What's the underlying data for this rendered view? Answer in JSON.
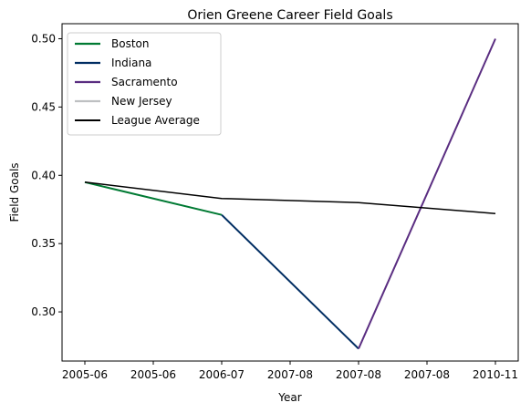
{
  "chart_data": {
    "type": "line",
    "title": "Orien Greene Career Field Goals",
    "xlabel": "Year",
    "ylabel": "Field Goals",
    "x_tick_labels": [
      "2005-06",
      "2005-06",
      "2006-07",
      "2007-08",
      "2007-08",
      "2007-08",
      "2010-11"
    ],
    "y_ticks": [
      0.3,
      0.35,
      0.4,
      0.45,
      0.5
    ],
    "y_tick_labels": [
      "0.30",
      "0.35",
      "0.40",
      "0.45",
      "0.50"
    ],
    "ylim": [
      0.264,
      0.511
    ],
    "x_points": [
      "2005-06",
      "2006-07",
      "2007-08",
      "2010-11"
    ],
    "series": [
      {
        "name": "Boston",
        "color": "#007a33",
        "points": [
          [
            "2005-06",
            0.395
          ],
          [
            "2006-07",
            0.371
          ]
        ]
      },
      {
        "name": "Indiana",
        "color": "#002d62",
        "points": [
          [
            "2006-07",
            0.371
          ],
          [
            "2007-08",
            0.273
          ]
        ]
      },
      {
        "name": "Sacramento",
        "color": "#5a2d81",
        "points": [
          [
            "2007-08",
            0.273
          ],
          [
            "2010-11",
            0.5
          ]
        ]
      },
      {
        "name": "New Jersey",
        "color": "#bec0c2",
        "points": []
      },
      {
        "name": "League Average",
        "color": "#000000",
        "points": [
          [
            "2005-06",
            0.395
          ],
          [
            "2006-07",
            0.383
          ],
          [
            "2007-08",
            0.38
          ],
          [
            "2010-11",
            0.372
          ]
        ]
      }
    ],
    "legend_position": "upper-left",
    "grid": false
  }
}
